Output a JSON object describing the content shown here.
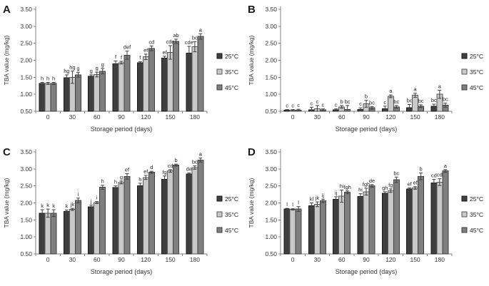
{
  "axes": {
    "y_label": "TBA value (mg/kg)",
    "x_label": "Storage period (days)",
    "y_ticks": [
      "3.50",
      "3.00",
      "2.50",
      "2.00",
      "1.50",
      "1.00",
      "0.50"
    ],
    "y_min": 0.5,
    "y_max": 3.5,
    "categories": [
      "0",
      "30",
      "60",
      "90",
      "120",
      "150",
      "180"
    ]
  },
  "legend": [
    {
      "label": "25°C",
      "fill": "#3f3f3f",
      "border": "#1a1a1a"
    },
    {
      "label": "35°C",
      "fill": "#c9c9c9",
      "border": "#595959"
    },
    {
      "label": "45°C",
      "fill": "#7f7f7f",
      "border": "#3f3f3f"
    }
  ],
  "colors": {
    "axis": "#808080",
    "error_bar": "#404040",
    "text": "#333333",
    "letter_text": "#262626",
    "background": "#ffffff"
  },
  "chart_data": [
    {
      "panel": "A",
      "type": "bar",
      "title": "",
      "xlabel": "Storage period (days)",
      "ylabel": "TBA value (mg/kg)",
      "ylim": [
        0.5,
        3.5
      ],
      "categories": [
        "0",
        "30",
        "60",
        "90",
        "120",
        "150",
        "180"
      ],
      "series": [
        {
          "name": "25°C",
          "values": [
            1.32,
            1.49,
            1.53,
            1.9,
            1.93,
            2.06,
            2.21
          ],
          "errors": [
            0.03,
            0.08,
            0.04,
            0.08,
            0.03,
            0.06,
            0.2
          ],
          "letters": [
            "h",
            "hg",
            "g",
            "f",
            "f",
            "ef",
            "cde"
          ]
        },
        {
          "name": "35°C",
          "values": [
            1.32,
            1.5,
            1.58,
            1.93,
            2.1,
            2.23,
            2.4
          ],
          "errors": [
            0.03,
            0.18,
            0.07,
            0.04,
            0.08,
            0.2,
            0.15
          ],
          "letters": [
            "h",
            "hg",
            "g",
            "f",
            "ef",
            "cde",
            "bc"
          ]
        },
        {
          "name": "45°C",
          "values": [
            1.32,
            1.57,
            1.68,
            2.15,
            2.35,
            2.56,
            2.7
          ],
          "errors": [
            0.03,
            0.07,
            0.08,
            0.12,
            0.07,
            0.06,
            0.08
          ],
          "letters": [
            "h",
            "g",
            "g",
            "def",
            "cd",
            "ab",
            "a"
          ]
        }
      ]
    },
    {
      "panel": "B",
      "type": "bar",
      "title": "",
      "xlabel": "Storage period (days)",
      "ylabel": "TBA value (mg/kg)",
      "ylim": [
        0.5,
        3.5
      ],
      "categories": [
        "0",
        "30",
        "60",
        "90",
        "120",
        "150",
        "180"
      ],
      "series": [
        {
          "name": "25°C",
          "values": [
            0.53,
            0.54,
            0.54,
            0.55,
            0.57,
            0.61,
            0.65
          ],
          "errors": [
            0.02,
            0.08,
            0.03,
            0.05,
            0.08,
            0.09,
            0.06
          ],
          "letters": [
            "c",
            "c",
            "c",
            "c",
            "c",
            "bc",
            "bc"
          ]
        },
        {
          "name": "35°C",
          "values": [
            0.53,
            0.57,
            0.63,
            0.72,
            0.94,
            0.97,
            1.0
          ],
          "errors": [
            0.02,
            0.1,
            0.04,
            0.1,
            0.04,
            0.06,
            0.12
          ],
          "letters": [
            "c",
            "c",
            "b",
            "b",
            "a",
            "a",
            "a"
          ]
        },
        {
          "name": "45°C",
          "values": [
            0.53,
            0.54,
            0.55,
            0.6,
            0.63,
            0.65,
            0.68
          ],
          "errors": [
            0.03,
            0.03,
            0.12,
            0.04,
            0.04,
            0.04,
            0.06
          ],
          "letters": [
            "c",
            "c",
            "bc",
            "bc",
            "bc",
            "bc",
            "bc"
          ]
        }
      ]
    },
    {
      "panel": "C",
      "type": "bar",
      "title": "",
      "xlabel": "Storage period (days)",
      "ylabel": "TBA value (mg/kg)",
      "ylim": [
        0.5,
        3.5
      ],
      "categories": [
        "0",
        "30",
        "60",
        "90",
        "120",
        "150",
        "180"
      ],
      "series": [
        {
          "name": "25°C",
          "values": [
            1.7,
            1.75,
            1.88,
            2.45,
            2.5,
            2.69,
            2.85
          ],
          "errors": [
            0.1,
            0.04,
            0.06,
            0.05,
            0.08,
            0.1,
            0.03
          ],
          "letters": [
            "k",
            "k",
            "j",
            "h",
            "h",
            "fg",
            "de"
          ]
        },
        {
          "name": "35°C",
          "values": [
            1.7,
            1.81,
            2.01,
            2.6,
            2.75,
            2.94,
            3.04
          ],
          "errors": [
            0.12,
            0.03,
            0.03,
            0.04,
            0.06,
            0.04,
            0.05
          ],
          "letters": [
            "k",
            "jk",
            "i",
            "g",
            "ef",
            "cd",
            "bc"
          ]
        },
        {
          "name": "45°C",
          "values": [
            1.7,
            2.07,
            2.46,
            2.78,
            2.9,
            3.11,
            3.26
          ],
          "errors": [
            0.1,
            0.07,
            0.06,
            0.08,
            0.03,
            0.03,
            0.06
          ],
          "letters": [
            "k",
            "i",
            "h",
            "ef",
            "d",
            "b",
            "a"
          ]
        }
      ]
    },
    {
      "panel": "D",
      "type": "bar",
      "title": "",
      "xlabel": "Storage period (days)",
      "ylabel": "TBA value (mg/kg)",
      "ylim": [
        0.5,
        3.5
      ],
      "categories": [
        "0",
        "30",
        "60",
        "90",
        "120",
        "150",
        "180"
      ],
      "series": [
        {
          "name": "25°C",
          "values": [
            1.82,
            1.92,
            2.1,
            2.19,
            2.28,
            2.41,
            2.59
          ],
          "errors": [
            0.02,
            0.08,
            0.08,
            0.08,
            0.05,
            0.03,
            0.1
          ],
          "letters": [
            "l",
            "kl",
            "ij",
            "hi",
            "gh",
            "ef",
            "cd"
          ]
        },
        {
          "name": "35°C",
          "values": [
            1.81,
            1.96,
            2.2,
            2.33,
            2.36,
            2.44,
            2.61
          ],
          "errors": [
            0.02,
            0.07,
            0.18,
            0.1,
            0.05,
            0.04,
            0.1
          ],
          "letters": [
            "l",
            "jk",
            "hi",
            "fgh",
            "fg",
            "ef",
            "cd"
          ]
        },
        {
          "name": "45°C",
          "values": [
            1.82,
            2.06,
            2.31,
            2.5,
            2.68,
            2.78,
            2.94
          ],
          "errors": [
            0.07,
            0.05,
            0.04,
            0.04,
            0.08,
            0.1,
            0.04
          ],
          "letters": [
            "l",
            "ij",
            "fgh",
            "de",
            "bc",
            "b",
            "a"
          ]
        }
      ]
    }
  ]
}
